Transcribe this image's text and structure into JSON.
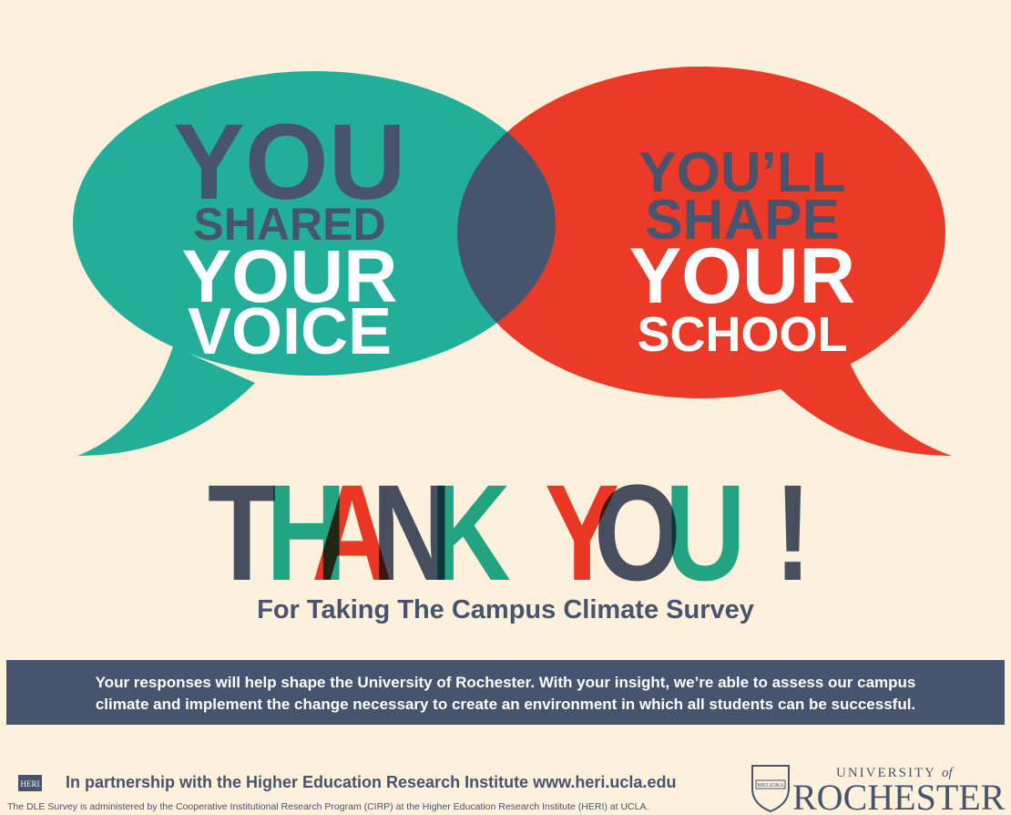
{
  "left_bubble": {
    "lines": [
      "YOU",
      "SHARED",
      "YOUR",
      "VOICE"
    ]
  },
  "right_bubble": {
    "lines": [
      "YOU’LL",
      "SHAPE",
      "YOUR",
      "SCHOOL"
    ]
  },
  "heading": {
    "letters": [
      "T",
      "H",
      "A",
      "N",
      "K",
      "Y",
      "O",
      "U",
      "!"
    ]
  },
  "subtitle": "For Taking The Campus Climate Survey",
  "banner": {
    "lines": [
      "Your responses will help shape the University of Rochester. With your insight, we’re able to assess our campus",
      "climate and implement the change necessary to create an environment in which all students can be successful."
    ]
  },
  "footer": {
    "heri_logo": "HERI",
    "partnership": "In partnership with the Higher Education Research Institute www.heri.ucla.edu",
    "note": "The DLE Survey is administered by the Cooperative Institutional Research Program (CIRP) at the Higher Education Research Institute (HERI) at UCLA.",
    "seal_text": "MELIORA",
    "university_line": "UNIVERSITY",
    "university_of": "of",
    "university_name": "ROCHESTER"
  }
}
